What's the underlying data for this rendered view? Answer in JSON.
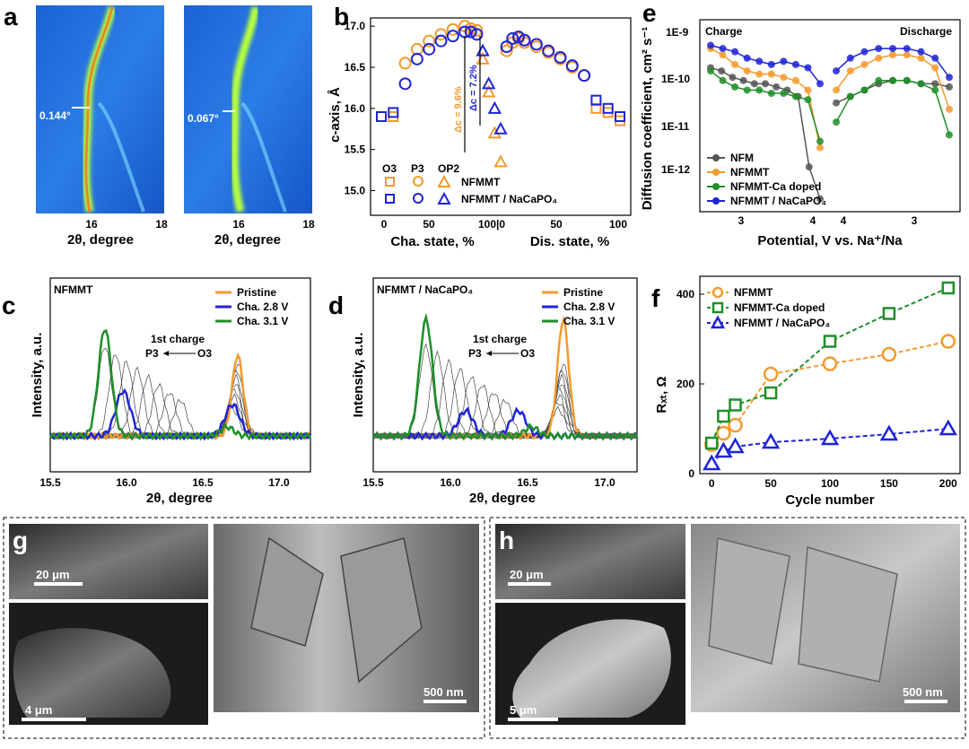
{
  "panels": {
    "a": {
      "label": "a",
      "xlabel": "2θ, degree",
      "xticks": [
        "16",
        "18",
        "16",
        "18"
      ],
      "fwhm_left": "0.144°",
      "fwhm_right": "0.067°"
    },
    "b": {
      "label": "b",
      "ylabel": "c-axis, Å",
      "yticks": [
        "15.0",
        "15.5",
        "16.0",
        "16.5",
        "17.0"
      ],
      "xlabel_charge": "Cha. state, %",
      "xlabel_discharge": "Dis. state, %",
      "xticks_charge": [
        "0",
        "50",
        "100|0"
      ],
      "xticks_discharge": [
        "50",
        "100"
      ],
      "legend_phases": [
        "O3",
        "P3",
        "OP2"
      ],
      "legend_series": [
        "NFMMT",
        "NFMMT / NaCaPO₄"
      ],
      "ann_orange": "Δc = 9.6%",
      "ann_blue": "Δc = 7.2%"
    },
    "c": {
      "label": "c",
      "sample": "NFMMT",
      "ylabel": "Intensity, a.u.",
      "xlabel": "2θ, degree",
      "xticks": [
        "15.5",
        "16.0",
        "16.5",
        "17.0"
      ],
      "legend": [
        "Pristine",
        "Cha. 2.8 V",
        "Cha. 3.1 V"
      ],
      "ann_charge": "1st charge",
      "ann_from": "O3",
      "ann_to": "P3"
    },
    "d": {
      "label": "d",
      "sample": "NFMMT / NaCaPO₄",
      "ylabel": "Intensity, a.u.",
      "xlabel": "2θ, degree",
      "xticks": [
        "15.5",
        "16.0",
        "16.5",
        "17.0"
      ],
      "legend": [
        "Pristine",
        "Cha. 2.8 V",
        "Cha. 3.1 V"
      ],
      "ann_charge": "1st charge",
      "ann_from": "O3",
      "ann_to": "P3"
    },
    "e": {
      "label": "e",
      "ylabel": "Diffusion coefficient, cm² s⁻¹",
      "xlabel": "Potential, V vs. Na⁺/Na",
      "yticks": [
        "1E-12",
        "1E-11",
        "1E-10",
        "1E-9"
      ],
      "xticks": [
        "3",
        "4",
        "4",
        "3"
      ],
      "charge": "Charge",
      "discharge": "Discharge",
      "legend": [
        "NFM",
        "NFMMT",
        "NFMMT-Ca doped",
        "NFMMT / NaCaPO₄"
      ]
    },
    "f": {
      "label": "f",
      "ylabel": "Rₓₜ, Ω",
      "xlabel": "Cycle number",
      "xticks": [
        "0",
        "50",
        "100",
        "150",
        "200"
      ],
      "yticks": [
        "0",
        "200",
        "400"
      ],
      "legend": [
        "NFMMT",
        "NFMMT-Ca doped",
        "NFMMT / NaCaPO₄"
      ]
    },
    "g": {
      "label": "g",
      "scale_top": "20 μm",
      "scale_bottom": "4 μm",
      "scale_right": "500 nm"
    },
    "h": {
      "label": "h",
      "scale_top": "20 μm",
      "scale_bottom": "5 μm",
      "scale_right": "500 nm"
    }
  },
  "colors": {
    "orange": "#f39a2e",
    "blue": "#1f24d6",
    "green": "#1e8f28",
    "gray": "#555555"
  },
  "chart_data": [
    {
      "panel": "b",
      "type": "scatter",
      "ylim": [
        14.7,
        17.1
      ],
      "series": [
        {
          "name": "NFMMT",
          "x": [
            0,
            10,
            20,
            30,
            40,
            50,
            60,
            70,
            75,
            80,
            85,
            90,
            95,
            100,
            105,
            110,
            115,
            120,
            130,
            140,
            150,
            160,
            170,
            180,
            190,
            200
          ],
          "y": [
            15.9,
            15.9,
            16.55,
            16.72,
            16.82,
            16.9,
            16.96,
            17.0,
            16.97,
            16.95,
            16.6,
            16.2,
            15.7,
            15.35,
            16.7,
            16.8,
            16.85,
            16.8,
            16.75,
            16.68,
            16.6,
            16.5,
            16.4,
            16.0,
            15.95,
            15.85
          ]
        },
        {
          "name": "NFMMT / NaCaPO₄",
          "x": [
            0,
            10,
            20,
            30,
            40,
            50,
            60,
            70,
            75,
            80,
            85,
            90,
            95,
            100,
            105,
            110,
            115,
            120,
            130,
            140,
            150,
            160,
            170,
            180,
            190,
            200
          ],
          "y": [
            15.9,
            15.95,
            16.3,
            16.6,
            16.72,
            16.82,
            16.88,
            16.93,
            16.93,
            16.9,
            16.7,
            16.3,
            16.0,
            15.75,
            16.75,
            16.85,
            16.87,
            16.83,
            16.78,
            16.7,
            16.62,
            16.52,
            16.4,
            16.1,
            16.0,
            15.9
          ]
        }
      ]
    },
    {
      "panel": "e",
      "type": "scatter",
      "ylim": [
        -12,
        -9
      ],
      "series": [
        {
          "name": "NFM",
          "charge": [
            -9.75,
            -9.8,
            -9.9,
            -9.95,
            -10.0,
            -10.0,
            -10.05,
            -10.1,
            -10.2,
            -11.3,
            -11.8
          ],
          "discharge": [
            -10.3,
            -10.2,
            -10.1,
            -10.0,
            -9.95,
            -9.95,
            -10.0,
            -10.0,
            -10.05
          ]
        },
        {
          "name": "NFMMT",
          "charge": [
            -9.45,
            -9.55,
            -9.7,
            -9.8,
            -9.85,
            -9.85,
            -9.9,
            -9.95,
            -10.1,
            -11.0
          ],
          "discharge": [
            -10.1,
            -9.8,
            -9.7,
            -9.6,
            -9.55,
            -9.55,
            -9.6,
            -9.75,
            -10.4
          ]
        },
        {
          "name": "NFMMT-Ca doped",
          "charge": [
            -9.8,
            -9.95,
            -10.05,
            -10.1,
            -10.1,
            -10.15,
            -10.15,
            -10.2,
            -10.25,
            -10.9
          ],
          "discharge": [
            -10.6,
            -10.2,
            -10.1,
            -9.95,
            -9.95,
            -9.95,
            -10.0,
            -10.1,
            -10.8
          ]
        },
        {
          "name": "NFMMT / NaCaPO₄",
          "charge": [
            -9.4,
            -9.45,
            -9.5,
            -9.6,
            -9.65,
            -9.7,
            -9.65,
            -9.7,
            -9.75,
            -10.0
          ],
          "discharge": [
            -9.8,
            -9.6,
            -9.5,
            -9.45,
            -9.45,
            -9.45,
            -9.5,
            -9.6,
            -9.9
          ]
        }
      ]
    },
    {
      "panel": "f",
      "type": "line",
      "xlim": [
        -10,
        210
      ],
      "ylim": [
        0,
        440
      ],
      "series": [
        {
          "name": "NFMMT",
          "x": [
            0,
            10,
            20,
            50,
            100,
            150,
            200
          ],
          "y": [
            65,
            90,
            108,
            222,
            245,
            266,
            295
          ]
        },
        {
          "name": "NFMMT-Ca doped",
          "x": [
            0,
            10,
            20,
            50,
            100,
            150,
            200
          ],
          "y": [
            68,
            128,
            153,
            180,
            295,
            357,
            414
          ]
        },
        {
          "name": "NFMMT / NaCaPO₄",
          "x": [
            0,
            10,
            20,
            50,
            100,
            150,
            200
          ],
          "y": [
            22,
            50,
            60,
            70,
            78,
            88,
            100
          ]
        }
      ]
    }
  ]
}
